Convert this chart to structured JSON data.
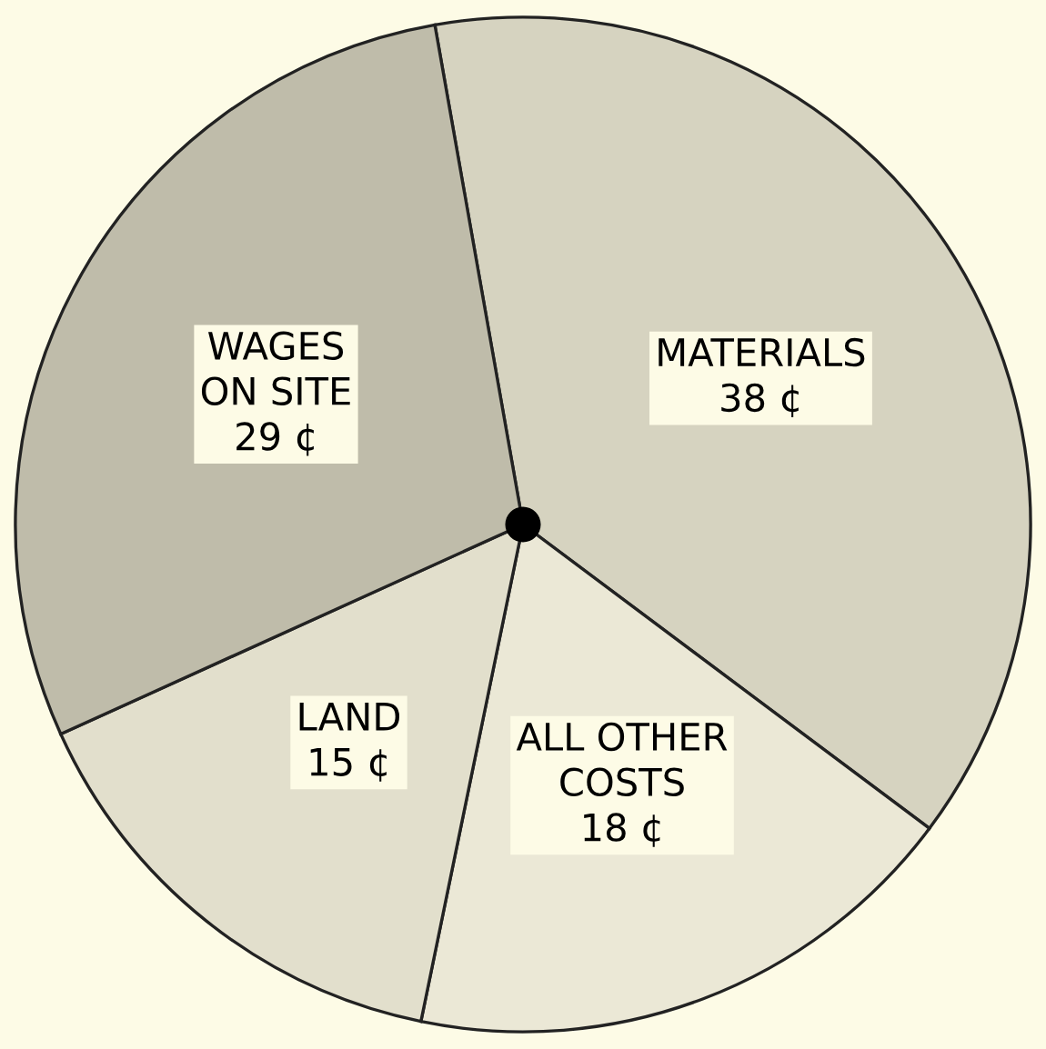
{
  "chart_data": {
    "type": "pie",
    "categories": [
      "MATERIALS",
      "ALL OTHER\nCOSTS",
      "LAND",
      "WAGES\nON SITE"
    ],
    "values": [
      38,
      18,
      15,
      29
    ],
    "value_labels": [
      "38 ¢",
      "18 ¢",
      "15 ¢",
      "29 ¢"
    ],
    "colors": [
      "#d6d3c0",
      "#ebe8d6",
      "#e2dfcc",
      "#bfbcaa"
    ]
  }
}
